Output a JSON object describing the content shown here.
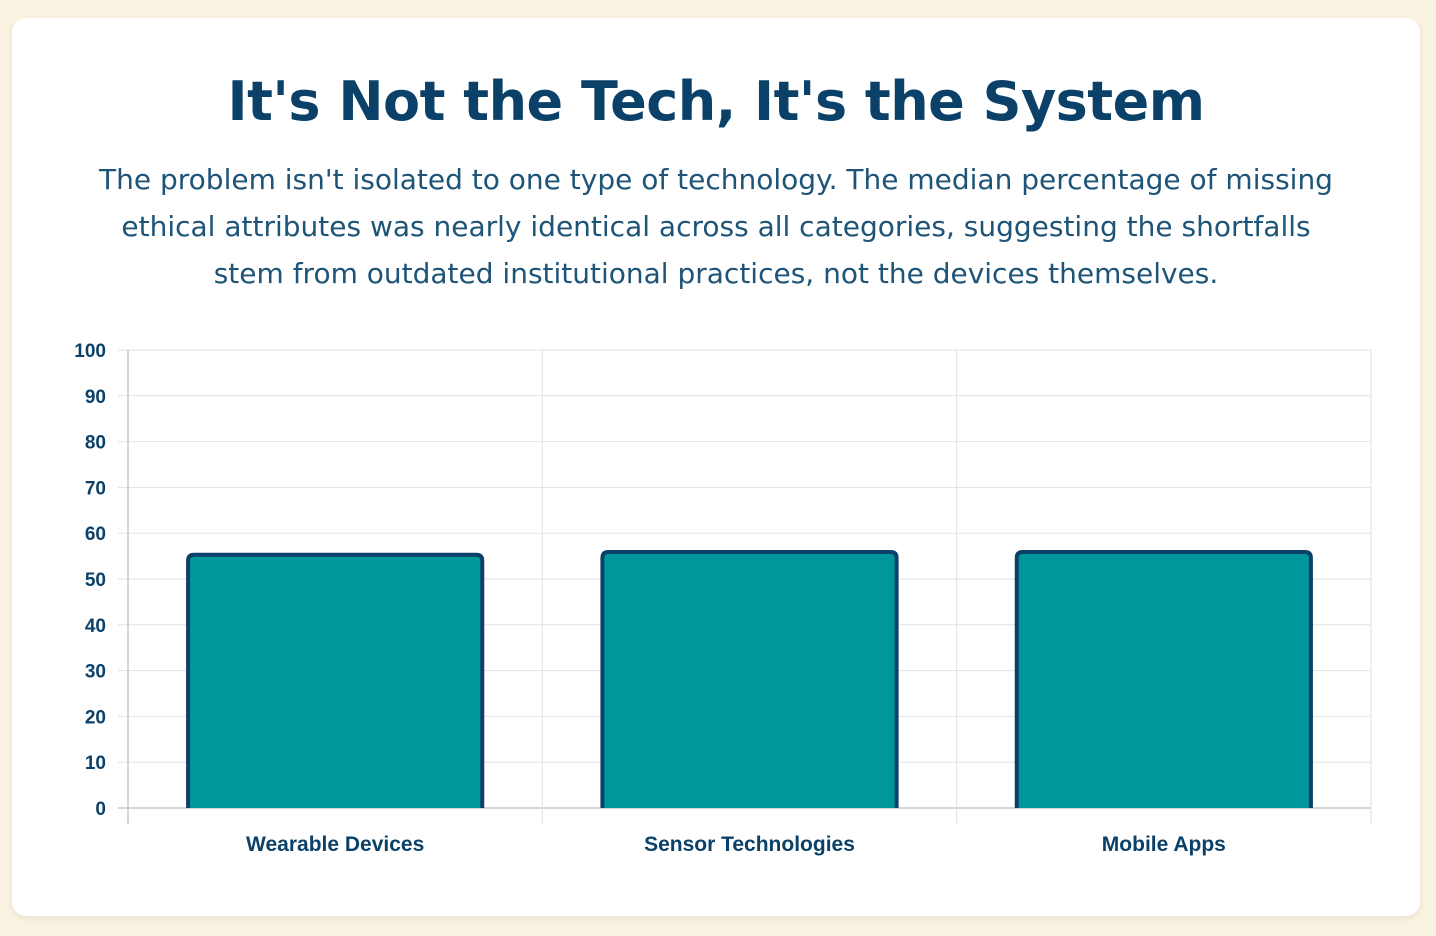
{
  "card": {
    "title": "It's Not the Tech, It's the System",
    "subtitle": "The problem isn't isolated to one type of technology. The median percentage of missing ethical attributes was nearly identical across all categories, suggesting the shortfalls stem from outdated institutional practices, not the devices themselves."
  },
  "colors": {
    "bar_fill": "#00979c",
    "bar_stroke": "#0b4168",
    "text": "#0b4168",
    "grid": "#e2e2e2",
    "axis": "#c8c8c8"
  },
  "chart_data": {
    "type": "bar",
    "title": "",
    "xlabel": "",
    "ylabel": "",
    "categories": [
      "Wearable Devices",
      "Sensor Technologies",
      "Mobile Apps"
    ],
    "values": [
      55.3,
      55.9,
      55.9
    ],
    "ylim": [
      0,
      100
    ],
    "yticks": [
      0,
      10,
      20,
      30,
      40,
      50,
      60,
      70,
      80,
      90,
      100
    ],
    "grid": true,
    "legend": "none"
  }
}
